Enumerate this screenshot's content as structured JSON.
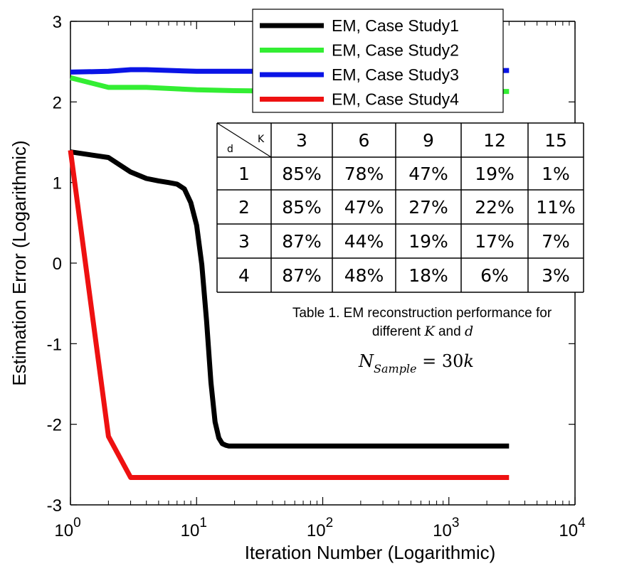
{
  "chart_data": {
    "type": "line",
    "title": "",
    "xlabel": "Iteration Number (Logarithmic)",
    "ylabel": "Estimation Error (Logarithmic)",
    "xscale": "log",
    "xlim": [
      1,
      10000
    ],
    "ylim": [
      -3,
      3
    ],
    "x_ticks": [
      {
        "value": 1,
        "base": "10",
        "exp": "0"
      },
      {
        "value": 10,
        "base": "10",
        "exp": "1"
      },
      {
        "value": 100,
        "base": "10",
        "exp": "2"
      },
      {
        "value": 1000,
        "base": "10",
        "exp": "3"
      },
      {
        "value": 10000,
        "base": "10",
        "exp": "4"
      }
    ],
    "y_ticks": [
      {
        "value": 3,
        "label": "3"
      },
      {
        "value": 2,
        "label": "2"
      },
      {
        "value": 1,
        "label": "1"
      },
      {
        "value": 0,
        "label": "0"
      },
      {
        "value": -1,
        "label": "-1"
      },
      {
        "value": -2,
        "label": "-2"
      },
      {
        "value": -3,
        "label": "-3"
      }
    ],
    "grid": false,
    "legend_position": "top-right",
    "series": [
      {
        "name": "EM, Case Study1",
        "color": "#000000",
        "x": [
          1,
          2,
          3,
          4,
          5,
          6,
          7,
          8,
          9,
          10,
          11,
          12,
          13,
          14,
          15,
          16,
          17,
          18,
          20,
          3000
        ],
        "y": [
          1.38,
          1.31,
          1.13,
          1.05,
          1.02,
          1.0,
          0.98,
          0.92,
          0.75,
          0.47,
          -0.02,
          -0.72,
          -1.48,
          -1.97,
          -2.17,
          -2.24,
          -2.26,
          -2.27,
          -2.27,
          -2.27
        ]
      },
      {
        "name": "EM, Case Study2",
        "color": "#33ee33",
        "x": [
          1,
          2,
          4,
          10,
          20,
          100,
          500,
          3000
        ],
        "y": [
          2.3,
          2.18,
          2.18,
          2.15,
          2.14,
          2.13,
          2.13,
          2.13
        ]
      },
      {
        "name": "EM, Case Study3",
        "color": "#0a14e6",
        "x": [
          1,
          2,
          3,
          4,
          10,
          20,
          100,
          500,
          3000
        ],
        "y": [
          2.37,
          2.38,
          2.4,
          2.4,
          2.38,
          2.38,
          2.38,
          2.38,
          2.39
        ]
      },
      {
        "name": "EM, Case Study4",
        "color": "#ee1111",
        "x": [
          1,
          2,
          3,
          3000
        ],
        "y": [
          1.4,
          -2.15,
          -2.66,
          -2.66
        ]
      }
    ]
  },
  "table": {
    "corner_k": "K",
    "corner_d": "d",
    "header": [
      "3",
      "6",
      "9",
      "12",
      "15"
    ],
    "rows": [
      {
        "d": "1",
        "values": [
          "85%",
          "78%",
          "47%",
          "19%",
          "1%"
        ]
      },
      {
        "d": "2",
        "values": [
          "85%",
          "47%",
          "27%",
          "22%",
          "11%"
        ]
      },
      {
        "d": "3",
        "values": [
          "87%",
          "44%",
          "19%",
          "17%",
          "7%"
        ]
      },
      {
        "d": "4",
        "values": [
          "87%",
          "48%",
          "18%",
          "6%",
          "3%"
        ]
      }
    ],
    "caption_line1": "Table 1. EM reconstruction performance for",
    "caption_line2_a": "different ",
    "caption_line2_k": "K",
    "caption_line2_b": " and ",
    "caption_line2_d": "d",
    "formula_main": "N",
    "formula_sub": "Sample",
    "formula_eq": " = 30",
    "formula_k": "k"
  }
}
